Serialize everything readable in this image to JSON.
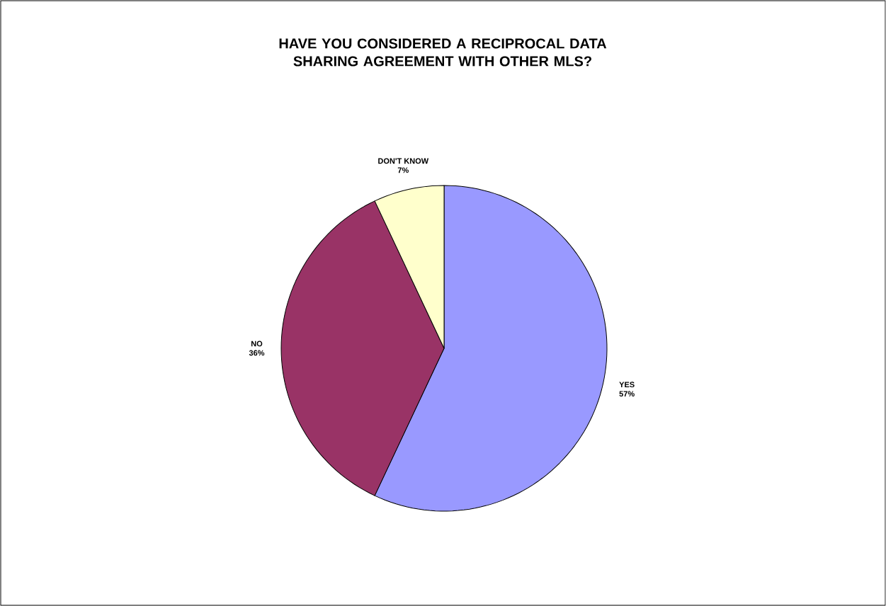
{
  "chart_data": {
    "type": "pie",
    "title": "HAVE YOU CONSIDERED A RECIPROCAL DATA SHARING AGREEMENT WITH OTHER MLS?",
    "categories": [
      "YES",
      "NO",
      "DON'T KNOW"
    ],
    "values": [
      57,
      36,
      7
    ],
    "colors": [
      "#9999ff",
      "#993366",
      "#ffffcc"
    ],
    "value_labels": [
      "57%",
      "36%",
      "7%"
    ]
  }
}
